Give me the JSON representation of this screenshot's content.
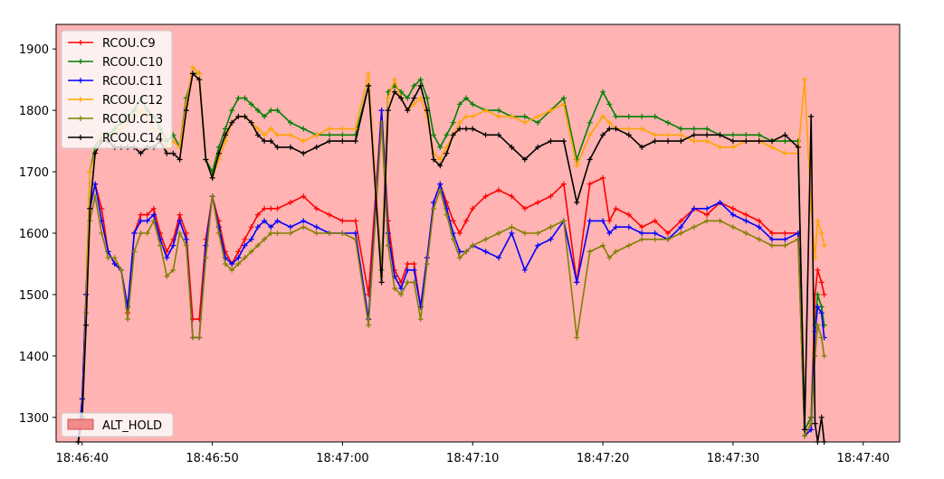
{
  "chart_data": {
    "type": "line",
    "title": "",
    "xlabel": "",
    "ylabel": "",
    "background_mode": "ALT_HOLD",
    "background_color": "#ffb3b3",
    "x_tick_labels": [
      "18:46:40",
      "18:46:50",
      "18:47:00",
      "18:47:10",
      "18:47:20",
      "18:47:30",
      "18:47:40"
    ],
    "x_tick_seconds": [
      0,
      10,
      20,
      30,
      40,
      50,
      60
    ],
    "xlim": [
      -2,
      62.8
    ],
    "ylim": [
      1260,
      1940
    ],
    "y_ticks": [
      1300,
      1400,
      1500,
      1600,
      1700,
      1800,
      1900
    ],
    "legend_placement": "top-left",
    "mode_legend": {
      "label": "ALT_HOLD",
      "color": "#f08080",
      "placement": "bottom-left"
    },
    "x": [
      -0.3,
      0.0,
      0.3,
      0.6,
      1,
      1.5,
      2,
      2.5,
      3,
      3.5,
      4,
      4.5,
      5,
      5.5,
      6,
      6.5,
      7,
      7.5,
      8,
      8.5,
      9,
      9.5,
      10,
      10.5,
      11,
      11.5,
      12,
      12.5,
      13,
      13.5,
      14,
      14.5,
      15,
      16,
      17,
      18,
      19,
      20,
      21,
      22,
      23,
      23.5,
      24,
      24.5,
      25,
      25.5,
      26,
      26.5,
      27,
      27.5,
      28,
      28.5,
      29,
      29.5,
      30,
      31,
      32,
      33,
      34,
      35,
      36,
      37,
      38,
      39,
      40,
      40.5,
      41,
      42,
      43,
      44,
      45,
      46,
      47,
      48,
      49,
      50,
      51,
      52,
      53,
      54,
      55,
      55.5,
      56,
      56.3,
      56.5,
      56.8,
      57
    ],
    "series": [
      {
        "name": "RCOU.C9",
        "color": "#ff0000",
        "values": [
          1260,
          1330,
          1500,
          1640,
          1680,
          1640,
          1570,
          1550,
          1540,
          1470,
          1600,
          1630,
          1630,
          1640,
          1600,
          1570,
          1590,
          1630,
          1600,
          1460,
          1460,
          1590,
          1660,
          1620,
          1570,
          1550,
          1570,
          1590,
          1610,
          1630,
          1640,
          1640,
          1640,
          1650,
          1660,
          1640,
          1630,
          1620,
          1620,
          1500,
          1800,
          1620,
          1540,
          1520,
          1550,
          1550,
          1480,
          1560,
          1650,
          1680,
          1650,
          1620,
          1600,
          1620,
          1640,
          1660,
          1670,
          1660,
          1640,
          1650,
          1660,
          1680,
          1520,
          1680,
          1690,
          1620,
          1640,
          1630,
          1610,
          1620,
          1600,
          1620,
          1640,
          1630,
          1650,
          1640,
          1630,
          1620,
          1600,
          1600,
          1600,
          1280,
          1300,
          1500,
          1540,
          1520,
          1500
        ]
      },
      {
        "name": "RCOU.C10",
        "color": "#008000",
        "values": [
          1260,
          1300,
          1500,
          1700,
          1740,
          1760,
          1760,
          1770,
          1780,
          1790,
          1800,
          1820,
          1800,
          1790,
          1770,
          1750,
          1760,
          1740,
          1820,
          1860,
          1860,
          1720,
          1700,
          1740,
          1770,
          1800,
          1820,
          1820,
          1810,
          1800,
          1790,
          1800,
          1800,
          1780,
          1770,
          1760,
          1760,
          1760,
          1760,
          1840,
          1540,
          1830,
          1840,
          1830,
          1820,
          1840,
          1850,
          1820,
          1760,
          1740,
          1760,
          1780,
          1810,
          1820,
          1810,
          1800,
          1800,
          1790,
          1790,
          1780,
          1800,
          1820,
          1720,
          1780,
          1830,
          1810,
          1790,
          1790,
          1790,
          1790,
          1780,
          1770,
          1770,
          1770,
          1760,
          1760,
          1760,
          1760,
          1750,
          1750,
          1750,
          1280,
          1300,
          1450,
          1500,
          1480,
          1450
        ]
      },
      {
        "name": "RCOU.C11",
        "color": "#0000ff",
        "values": [
          1260,
          1330,
          1500,
          1640,
          1680,
          1620,
          1570,
          1550,
          1540,
          1480,
          1600,
          1620,
          1620,
          1630,
          1590,
          1560,
          1580,
          1620,
          1590,
          1430,
          1430,
          1580,
          1660,
          1610,
          1560,
          1550,
          1560,
          1580,
          1590,
          1610,
          1620,
          1610,
          1620,
          1610,
          1620,
          1610,
          1600,
          1600,
          1600,
          1460,
          1800,
          1600,
          1530,
          1510,
          1540,
          1540,
          1480,
          1560,
          1650,
          1680,
          1640,
          1600,
          1570,
          1570,
          1580,
          1570,
          1560,
          1600,
          1540,
          1580,
          1590,
          1620,
          1520,
          1620,
          1620,
          1600,
          1610,
          1610,
          1600,
          1600,
          1590,
          1610,
          1640,
          1640,
          1650,
          1630,
          1620,
          1610,
          1590,
          1590,
          1600,
          1270,
          1280,
          1440,
          1480,
          1470,
          1430
        ]
      },
      {
        "name": "RCOU.C12",
        "color": "#ffa500",
        "values": [
          1260,
          1290,
          1480,
          1700,
          1730,
          1760,
          1750,
          1760,
          1770,
          1780,
          1790,
          1800,
          1790,
          1770,
          1760,
          1740,
          1750,
          1740,
          1810,
          1870,
          1860,
          1720,
          1690,
          1720,
          1750,
          1780,
          1790,
          1790,
          1780,
          1770,
          1760,
          1770,
          1760,
          1760,
          1750,
          1760,
          1770,
          1770,
          1770,
          1860,
          1530,
          1820,
          1850,
          1820,
          1800,
          1810,
          1820,
          1790,
          1730,
          1720,
          1740,
          1760,
          1780,
          1790,
          1790,
          1800,
          1790,
          1790,
          1780,
          1790,
          1800,
          1810,
          1710,
          1760,
          1790,
          1780,
          1770,
          1770,
          1770,
          1760,
          1760,
          1760,
          1750,
          1750,
          1740,
          1740,
          1750,
          1750,
          1740,
          1730,
          1730,
          1850,
          1640,
          1560,
          1620,
          1600,
          1580
        ]
      },
      {
        "name": "RCOU.C13",
        "color": "#808000",
        "values": [
          1260,
          1300,
          1470,
          1620,
          1660,
          1600,
          1560,
          1560,
          1540,
          1460,
          1570,
          1600,
          1600,
          1620,
          1580,
          1530,
          1540,
          1600,
          1580,
          1430,
          1430,
          1560,
          1660,
          1600,
          1550,
          1540,
          1550,
          1560,
          1570,
          1580,
          1590,
          1600,
          1600,
          1600,
          1610,
          1600,
          1600,
          1600,
          1590,
          1450,
          1780,
          1580,
          1510,
          1500,
          1520,
          1520,
          1460,
          1550,
          1640,
          1670,
          1630,
          1590,
          1560,
          1570,
          1580,
          1590,
          1600,
          1610,
          1600,
          1600,
          1610,
          1620,
          1430,
          1570,
          1580,
          1560,
          1570,
          1580,
          1590,
          1590,
          1590,
          1600,
          1610,
          1620,
          1620,
          1610,
          1600,
          1590,
          1580,
          1580,
          1590,
          1270,
          1290,
          1400,
          1450,
          1430,
          1400
        ]
      },
      {
        "name": "RCOU.C14",
        "color": "#000000",
        "values": [
          1260,
          1300,
          1450,
          1640,
          1730,
          1750,
          1750,
          1740,
          1740,
          1740,
          1740,
          1730,
          1740,
          1740,
          1750,
          1730,
          1730,
          1720,
          1800,
          1860,
          1850,
          1720,
          1690,
          1730,
          1760,
          1780,
          1790,
          1790,
          1780,
          1760,
          1750,
          1750,
          1740,
          1740,
          1730,
          1740,
          1750,
          1750,
          1750,
          1840,
          1520,
          1800,
          1830,
          1820,
          1800,
          1820,
          1840,
          1800,
          1720,
          1710,
          1730,
          1760,
          1770,
          1770,
          1770,
          1760,
          1760,
          1740,
          1720,
          1740,
          1750,
          1750,
          1650,
          1720,
          1760,
          1770,
          1770,
          1760,
          1740,
          1750,
          1750,
          1750,
          1760,
          1760,
          1760,
          1750,
          1750,
          1750,
          1750,
          1760,
          1740,
          1280,
          1790,
          1290,
          1260,
          1300,
          1260
        ]
      }
    ]
  }
}
